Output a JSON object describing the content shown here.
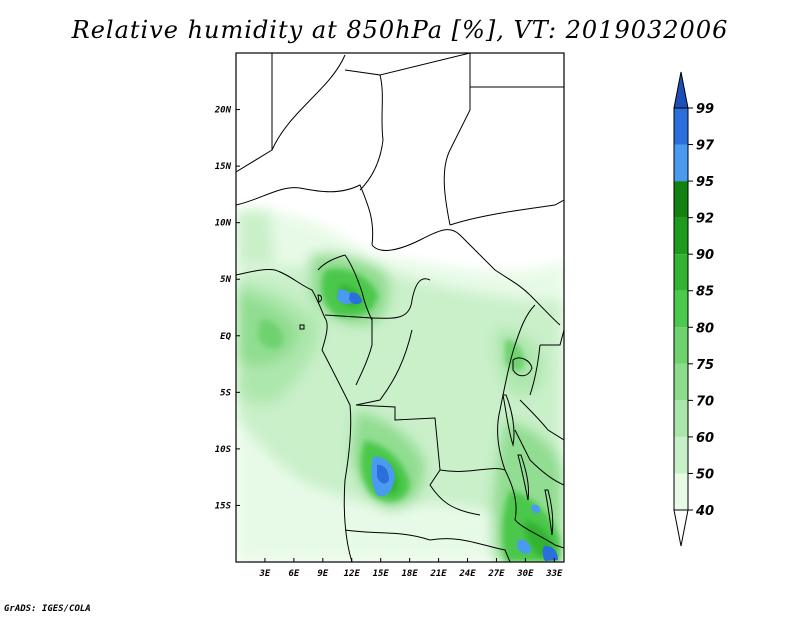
{
  "title": "Relative humidity at 850hPa [%], VT: 2019032006",
  "credit": "GrADS: IGES/COLA",
  "map": {
    "lon_range": [
      0,
      34
    ],
    "lat_range": [
      -20,
      25
    ],
    "lon_ticks": [
      {
        "value": 3,
        "label": "3E"
      },
      {
        "value": 6,
        "label": "6E"
      },
      {
        "value": 9,
        "label": "9E"
      },
      {
        "value": 12,
        "label": "12E"
      },
      {
        "value": 15,
        "label": "15E"
      },
      {
        "value": 18,
        "label": "18E"
      },
      {
        "value": 21,
        "label": "21E"
      },
      {
        "value": 24,
        "label": "24E"
      },
      {
        "value": 27,
        "label": "27E"
      },
      {
        "value": 30,
        "label": "30E"
      },
      {
        "value": 33,
        "label": "33E"
      }
    ],
    "lat_ticks": [
      {
        "value": 20,
        "label": "20N"
      },
      {
        "value": 15,
        "label": "15N"
      },
      {
        "value": 10,
        "label": "10N"
      },
      {
        "value": 5,
        "label": "5N"
      },
      {
        "value": 0,
        "label": "EQ"
      },
      {
        "value": -5,
        "label": "5S"
      },
      {
        "value": -10,
        "label": "10S"
      },
      {
        "value": -15,
        "label": "15S"
      }
    ]
  },
  "colorbar": {
    "levels": [
      "40",
      "50",
      "60",
      "70",
      "75",
      "80",
      "85",
      "90",
      "92",
      "95",
      "97",
      "99"
    ],
    "colors": [
      "#ffffff",
      "#e6fae6",
      "#c8f0c8",
      "#aae6aa",
      "#8cdc8c",
      "#6ed26e",
      "#4cc84c",
      "#32b432",
      "#1e9b1e",
      "#118211",
      "#4a9bef",
      "#2a6fdc",
      "#1c4fb8"
    ]
  }
}
